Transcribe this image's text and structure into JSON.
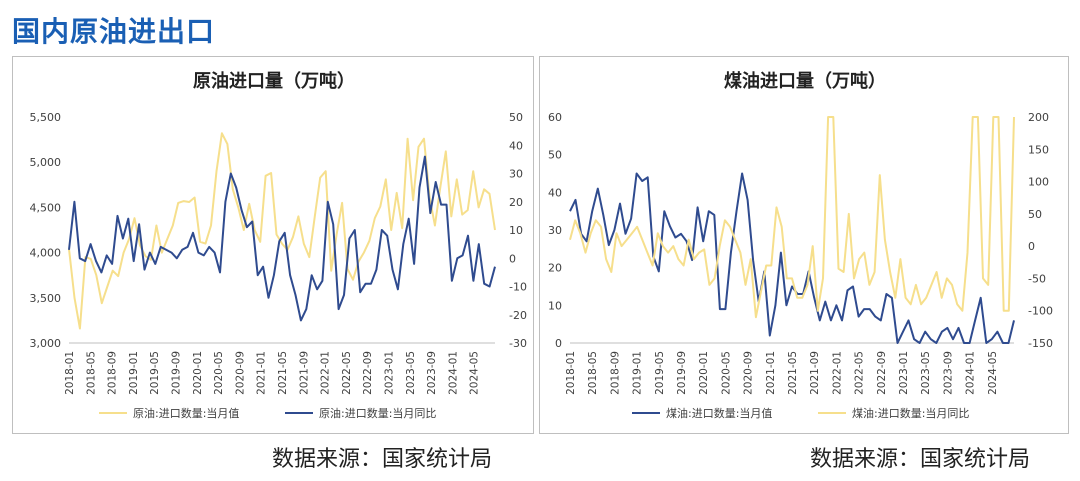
{
  "page": {
    "title": "国内原油进出口"
  },
  "sources": {
    "left": "数据来源：国家统计局",
    "right": "数据来源：国家统计局"
  },
  "colors": {
    "navy": "#2f4b8f",
    "gold": "#f6df8c",
    "axis": "#bfbfbf",
    "text": "#404040"
  },
  "chart_data": [
    {
      "type": "line",
      "title": "原油进口量（万吨）",
      "x_tick_labels": [
        "2018-01",
        "2018-05",
        "2018-09",
        "2019-01",
        "2019-05",
        "2019-09",
        "2020-01",
        "2020-05",
        "2020-09",
        "2021-01",
        "2021-05",
        "2021-09",
        "2022-01",
        "2022-05",
        "2022-09",
        "2023-01",
        "2023-05",
        "2023-09",
        "2024-01",
        "2024-05"
      ],
      "left_axis": {
        "ylim": [
          3000,
          5500
        ],
        "ticks": [
          "3,000",
          "3,500",
          "4,000",
          "4,500",
          "5,000",
          "5,500"
        ]
      },
      "right_axis": {
        "ylim": [
          -30,
          50
        ],
        "ticks": [
          "-30",
          "-20",
          "-10",
          "0",
          "10",
          "20",
          "30",
          "40",
          "50"
        ]
      },
      "series": [
        {
          "name": "原油:进口数量:当月值",
          "color": "#f6df8c",
          "axis": "left",
          "values": [
            4040,
            3500,
            3160,
            3950,
            3930,
            3750,
            3440,
            3620,
            3800,
            3740,
            4000,
            4150,
            4380,
            4080,
            3960,
            3920,
            4300,
            4000,
            4150,
            4300,
            4550,
            4570,
            4560,
            4610,
            4120,
            4100,
            4300,
            4900,
            5320,
            5200,
            4700,
            4500,
            4250,
            4540,
            4250,
            4120,
            4850,
            4880,
            4200,
            4100,
            4030,
            4170,
            4400,
            4100,
            3950,
            4400,
            4830,
            4900,
            3800,
            4200,
            4550,
            3820,
            3700,
            3900,
            4000,
            4130,
            4380,
            4510,
            4810,
            4250,
            4660,
            4270,
            5260,
            4580,
            5170,
            5260,
            4620,
            4300,
            4730,
            5120,
            4400,
            4810,
            4420,
            4470,
            4900,
            4500,
            4700,
            4650,
            4250
          ],
          "legend": "原油:进口数量:当月值"
        },
        {
          "name": "原油:进口数量:当月同比",
          "color": "#2f4b8f",
          "axis": "right",
          "values": [
            3,
            20,
            0,
            -1,
            5,
            -1,
            -5,
            1,
            -2,
            15,
            7,
            14,
            -1,
            12,
            -4,
            2,
            -2,
            4,
            3,
            2,
            0,
            3,
            4,
            9,
            2,
            1,
            4,
            2,
            -5,
            20,
            30,
            25,
            17,
            11,
            13,
            -6,
            -3,
            -14,
            -6,
            6,
            9,
            -6,
            -13,
            -22,
            -18,
            -6,
            -11,
            -8,
            20,
            12,
            -18,
            -13,
            7,
            10,
            -12,
            -9,
            -9,
            -4,
            10,
            8,
            -4,
            -11,
            5,
            14,
            -2,
            25,
            36,
            16,
            27,
            19,
            19,
            -8,
            0,
            1,
            8,
            -8,
            5,
            -9,
            -10,
            -3
          ]
        }
      ]
    },
    {
      "type": "line",
      "title": "煤油进口量（万吨）",
      "x_tick_labels": [
        "2018-01",
        "2018-05",
        "2018-09",
        "2019-01",
        "2019-05",
        "2019-09",
        "2020-01",
        "2020-05",
        "2020-09",
        "2021-01",
        "2021-05",
        "2021-09",
        "2022-01",
        "2022-05",
        "2022-09",
        "2023-01",
        "2023-05",
        "2023-09",
        "2024-01",
        "2024-05"
      ],
      "left_axis": {
        "ylim": [
          0,
          60
        ],
        "ticks": [
          "0",
          "10",
          "20",
          "30",
          "40",
          "50",
          "60"
        ]
      },
      "right_axis": {
        "ylim": [
          -150,
          200
        ],
        "ticks": [
          "-150",
          "-100",
          "-50",
          "0",
          "50",
          "100",
          "150",
          "200"
        ]
      },
      "series": [
        {
          "name": "煤油:进口数量:当月值",
          "color": "#2f4b8f",
          "axis": "left",
          "values": [
            35,
            38,
            29,
            27,
            35,
            41,
            34,
            26,
            30,
            37,
            29,
            33,
            45,
            43,
            44,
            23,
            19,
            35,
            31,
            28,
            29,
            27,
            22,
            36,
            27,
            35,
            34,
            9,
            9,
            24,
            35,
            45,
            38,
            22,
            11,
            19,
            2,
            10,
            24,
            10,
            15,
            13,
            13,
            19,
            12,
            6,
            11,
            6,
            10,
            6,
            14,
            15,
            7,
            9,
            9,
            7,
            6,
            13,
            12,
            0,
            3,
            6,
            1,
            0,
            3,
            1,
            0,
            3,
            4,
            1,
            4,
            0,
            0,
            6,
            12,
            0,
            1,
            3,
            0,
            0,
            6
          ],
          "legend": "煤油:进口数量:当月值"
        },
        {
          "name": "煤油:进口数量:当月同比",
          "color": "#f6df8c",
          "axis": "right",
          "values": [
            10,
            40,
            20,
            -10,
            20,
            40,
            30,
            -20,
            -40,
            20,
            0,
            10,
            20,
            30,
            10,
            -10,
            -30,
            20,
            0,
            -10,
            0,
            -20,
            -30,
            10,
            -20,
            -10,
            -5,
            -60,
            -50,
            0,
            40,
            30,
            10,
            -10,
            -60,
            -20,
            -110,
            -70,
            -30,
            -30,
            60,
            30,
            -50,
            -50,
            -80,
            -80,
            -60,
            0,
            -100,
            -50,
            200,
            200,
            -35,
            -40,
            50,
            -50,
            -20,
            -10,
            -60,
            -40,
            110,
            10,
            -40,
            -80,
            -20,
            -80,
            -90,
            -60,
            -90,
            -80,
            -60,
            -40,
            -80,
            -50,
            -60,
            -90,
            -100,
            -10,
            200,
            200,
            -50,
            -60,
            200,
            200,
            -100,
            -100,
            200
          ]
        }
      ]
    }
  ]
}
